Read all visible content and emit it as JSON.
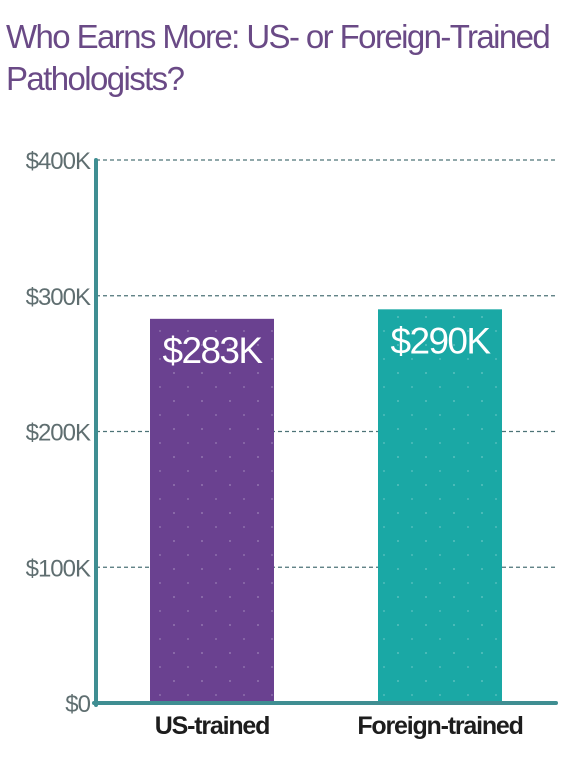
{
  "chart_data": {
    "type": "bar",
    "title": "Who Earns More: US- or Foreign-Trained Pathologists?",
    "xlabel": "",
    "ylabel": "",
    "categories": [
      "US-trained",
      "Foreign-trained"
    ],
    "values": [
      283,
      290
    ],
    "data_labels": [
      "$283K",
      "$290K"
    ],
    "yticks": [
      0,
      100,
      200,
      300,
      400
    ],
    "ytick_labels": [
      "$0",
      "$100K",
      "$200K",
      "$300K",
      "$400K"
    ],
    "ylim": [
      0,
      400
    ],
    "grid": true,
    "bar_colors": [
      "#6a4190",
      "#1aa8a5"
    ],
    "axis_color": "#3f8e92",
    "grid_color": "#4d7377"
  }
}
